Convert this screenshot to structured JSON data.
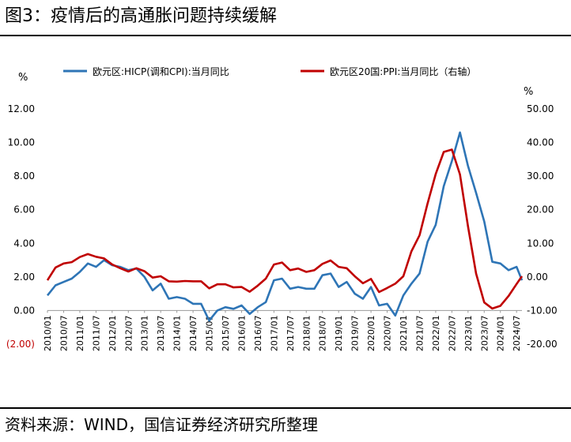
{
  "title": "图3：疫情后的高通胀问题持续缓解",
  "source": "资料来源：WIND，国信证券经济研究所整理",
  "chart_data": {
    "type": "line",
    "left_unit": "%",
    "right_unit": "%",
    "y_left": {
      "min": -2,
      "max": 12,
      "step": 2,
      "ticks": [
        "(2.00)",
        "0.00",
        "2.00",
        "4.00",
        "6.00",
        "8.00",
        "10.00",
        "12.00"
      ]
    },
    "y_right": {
      "min": -20,
      "max": 50,
      "step": 10,
      "ticks": [
        "-20.00",
        "-10.00",
        "0.00",
        "10.00",
        "20.00",
        "30.00",
        "40.00",
        "50.00"
      ]
    },
    "x_ticks": [
      "2010/01",
      "2010/07",
      "2011/01",
      "2011/07",
      "2012/01",
      "2012/07",
      "2013/01",
      "2013/07",
      "2014/01",
      "2014/07",
      "2015/01",
      "2015/07",
      "2016/01",
      "2016/07",
      "2017/01",
      "2017/07",
      "2018/01",
      "2018/07",
      "2019/01",
      "2019/07",
      "2020/01",
      "2020/07",
      "2021/01",
      "2021/07",
      "2022/01",
      "2022/07",
      "2023/01",
      "2023/07",
      "2024/01",
      "2024/07"
    ],
    "x_range": [
      "2010/01",
      "2024/09"
    ],
    "legend_position": "top",
    "colors": {
      "left_axis_negative": "#c00000",
      "grid": "none"
    },
    "series": [
      {
        "name": "欧元区:HICP(调和CPI):当月同比",
        "axis": "left",
        "color": "#2e75b6",
        "points": [
          [
            "2010/01",
            0.9
          ],
          [
            "2010/04",
            1.5
          ],
          [
            "2010/07",
            1.7
          ],
          [
            "2010/10",
            1.9
          ],
          [
            "2011/01",
            2.3
          ],
          [
            "2011/04",
            2.8
          ],
          [
            "2011/07",
            2.6
          ],
          [
            "2011/10",
            3.0
          ],
          [
            "2012/01",
            2.7
          ],
          [
            "2012/04",
            2.6
          ],
          [
            "2012/07",
            2.4
          ],
          [
            "2012/10",
            2.5
          ],
          [
            "2013/01",
            2.0
          ],
          [
            "2013/04",
            1.2
          ],
          [
            "2013/07",
            1.6
          ],
          [
            "2013/10",
            0.7
          ],
          [
            "2014/01",
            0.8
          ],
          [
            "2014/04",
            0.7
          ],
          [
            "2014/07",
            0.4
          ],
          [
            "2014/10",
            0.4
          ],
          [
            "2015/01",
            -0.6
          ],
          [
            "2015/04",
            0.0
          ],
          [
            "2015/07",
            0.2
          ],
          [
            "2015/10",
            0.1
          ],
          [
            "2016/01",
            0.3
          ],
          [
            "2016/04",
            -0.2
          ],
          [
            "2016/07",
            0.2
          ],
          [
            "2016/10",
            0.5
          ],
          [
            "2017/01",
            1.8
          ],
          [
            "2017/04",
            1.9
          ],
          [
            "2017/07",
            1.3
          ],
          [
            "2017/10",
            1.4
          ],
          [
            "2018/01",
            1.3
          ],
          [
            "2018/04",
            1.3
          ],
          [
            "2018/07",
            2.1
          ],
          [
            "2018/10",
            2.2
          ],
          [
            "2019/01",
            1.4
          ],
          [
            "2019/04",
            1.7
          ],
          [
            "2019/07",
            1.0
          ],
          [
            "2019/10",
            0.7
          ],
          [
            "2020/01",
            1.4
          ],
          [
            "2020/04",
            0.3
          ],
          [
            "2020/07",
            0.4
          ],
          [
            "2020/10",
            -0.3
          ],
          [
            "2021/01",
            0.9
          ],
          [
            "2021/04",
            1.6
          ],
          [
            "2021/07",
            2.2
          ],
          [
            "2021/10",
            4.1
          ],
          [
            "2022/01",
            5.1
          ],
          [
            "2022/04",
            7.4
          ],
          [
            "2022/07",
            8.9
          ],
          [
            "2022/10",
            10.6
          ],
          [
            "2023/01",
            8.6
          ],
          [
            "2023/04",
            7.0
          ],
          [
            "2023/07",
            5.3
          ],
          [
            "2023/10",
            2.9
          ],
          [
            "2024/01",
            2.8
          ],
          [
            "2024/04",
            2.4
          ],
          [
            "2024/07",
            2.6
          ],
          [
            "2024/09",
            1.8
          ]
        ]
      },
      {
        "name": "欧元区20国:PPI:当月同比（右轴）",
        "axis": "right",
        "color": "#c00000",
        "points": [
          [
            "2010/01",
            -1.0
          ],
          [
            "2010/04",
            2.8
          ],
          [
            "2010/07",
            4.0
          ],
          [
            "2010/10",
            4.4
          ],
          [
            "2011/01",
            5.9
          ],
          [
            "2011/04",
            6.8
          ],
          [
            "2011/07",
            6.0
          ],
          [
            "2011/10",
            5.5
          ],
          [
            "2012/01",
            3.7
          ],
          [
            "2012/04",
            2.6
          ],
          [
            "2012/07",
            1.6
          ],
          [
            "2012/10",
            2.6
          ],
          [
            "2013/01",
            1.7
          ],
          [
            "2013/04",
            -0.2
          ],
          [
            "2013/07",
            0.2
          ],
          [
            "2013/10",
            -1.3
          ],
          [
            "2014/01",
            -1.4
          ],
          [
            "2014/04",
            -1.2
          ],
          [
            "2014/07",
            -1.3
          ],
          [
            "2014/10",
            -1.3
          ],
          [
            "2015/01",
            -3.4
          ],
          [
            "2015/04",
            -2.2
          ],
          [
            "2015/07",
            -2.2
          ],
          [
            "2015/10",
            -3.1
          ],
          [
            "2016/01",
            -3.0
          ],
          [
            "2016/04",
            -4.4
          ],
          [
            "2016/07",
            -2.6
          ],
          [
            "2016/10",
            -0.5
          ],
          [
            "2017/01",
            3.7
          ],
          [
            "2017/04",
            4.3
          ],
          [
            "2017/07",
            2.0
          ],
          [
            "2017/10",
            2.5
          ],
          [
            "2018/01",
            1.5
          ],
          [
            "2018/04",
            2.0
          ],
          [
            "2018/07",
            3.9
          ],
          [
            "2018/10",
            4.9
          ],
          [
            "2019/01",
            3.0
          ],
          [
            "2019/04",
            2.6
          ],
          [
            "2019/07",
            0.2
          ],
          [
            "2019/10",
            -1.9
          ],
          [
            "2020/01",
            -0.6
          ],
          [
            "2020/04",
            -4.5
          ],
          [
            "2020/07",
            -3.3
          ],
          [
            "2020/10",
            -2.0
          ],
          [
            "2021/01",
            0.2
          ],
          [
            "2021/04",
            7.6
          ],
          [
            "2021/07",
            12.4
          ],
          [
            "2021/10",
            21.9
          ],
          [
            "2022/01",
            30.6
          ],
          [
            "2022/04",
            37.2
          ],
          [
            "2022/07",
            37.9
          ],
          [
            "2022/10",
            30.5
          ],
          [
            "2023/01",
            15.0
          ],
          [
            "2023/04",
            1.0
          ],
          [
            "2023/07",
            -7.6
          ],
          [
            "2023/10",
            -9.4
          ],
          [
            "2024/01",
            -8.6
          ],
          [
            "2024/04",
            -5.7
          ],
          [
            "2024/07",
            -2.1
          ],
          [
            "2024/09",
            0.2
          ]
        ]
      }
    ]
  }
}
